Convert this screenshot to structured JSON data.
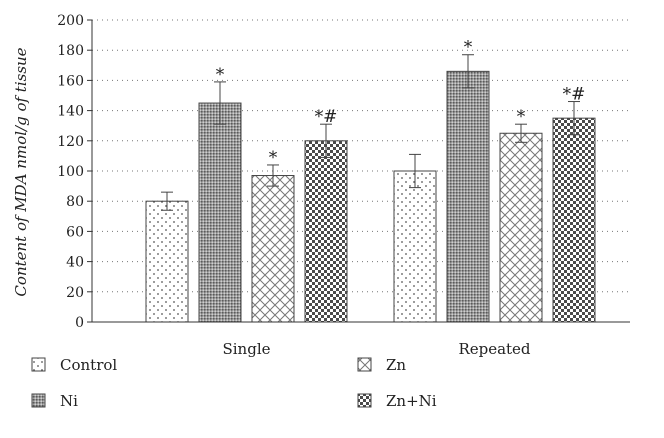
{
  "chart_data": {
    "type": "bar",
    "title": "",
    "xlabel": "",
    "ylabel": "Content of MDA nmol/g of tissue",
    "ylim": [
      0,
      200
    ],
    "yticks": [
      0,
      20,
      40,
      60,
      80,
      100,
      120,
      140,
      160,
      180,
      200
    ],
    "grid": "horizontal dotted",
    "legend_placement": "bottom",
    "categories": [
      "Single",
      "Repeated"
    ],
    "series": [
      {
        "name": "Control",
        "values": [
          80,
          100
        ],
        "errors": [
          6,
          11
        ],
        "annotations": [
          "",
          ""
        ],
        "pattern": "dots"
      },
      {
        "name": "Ni",
        "values": [
          145,
          166
        ],
        "errors": [
          14,
          11
        ],
        "annotations": [
          "*",
          "*"
        ],
        "pattern": "dense-grid"
      },
      {
        "name": "Zn",
        "values": [
          97,
          125
        ],
        "errors": [
          7,
          6
        ],
        "annotations": [
          "*",
          "*"
        ],
        "pattern": "diamond-lattice"
      },
      {
        "name": "Zn+Ni",
        "values": [
          120,
          135
        ],
        "errors": [
          11,
          11
        ],
        "annotations": [
          "*#",
          "*#"
        ],
        "pattern": "checker"
      }
    ]
  }
}
